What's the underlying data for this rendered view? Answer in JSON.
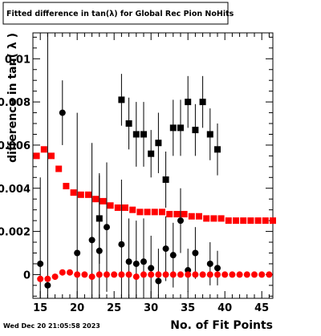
{
  "chart_data": {
    "type": "scatter",
    "title": "Fitted difference in tan(λ) for Global Rec Pion NoHits",
    "xlabel": "No. of Fit Points",
    "ylabel": "difference in tan( λ )",
    "xlim": [
      14,
      46.5
    ],
    "ylim": [
      -0.0011,
      0.0112
    ],
    "grid": false,
    "legend": "none",
    "x_ticks": [
      15,
      20,
      25,
      30,
      35,
      40,
      45
    ],
    "x_tick_labels": [
      "15",
      "20",
      "25",
      "30",
      "35",
      "40",
      "45"
    ],
    "y_ticks": [
      0,
      0.002,
      0.004,
      0.006,
      0.008,
      0.01
    ],
    "y_tick_labels": [
      "0",
      "0.002",
      "0.004",
      "0.006",
      "0.008",
      "0.01"
    ],
    "series": [
      {
        "marker": "square",
        "color": "#000000",
        "points": [
          {
            "x": 23,
            "y": 0.0026,
            "err": 0.0021
          },
          {
            "x": 26,
            "y": 0.0081,
            "err": 0.0012
          },
          {
            "x": 27,
            "y": 0.007,
            "err": 0.0012
          },
          {
            "x": 28,
            "y": 0.0065,
            "err": 0.0015
          },
          {
            "x": 29,
            "y": 0.0065,
            "err": 0.0015
          },
          {
            "x": 30,
            "y": 0.0056,
            "err": 0.0011
          },
          {
            "x": 31,
            "y": 0.0061,
            "err": 0.0014
          },
          {
            "x": 32,
            "y": 0.0044,
            "err": 0.0013
          },
          {
            "x": 33,
            "y": 0.0068,
            "err": 0.0013
          },
          {
            "x": 34,
            "y": 0.0068,
            "err": 0.0013
          },
          {
            "x": 35,
            "y": 0.008,
            "err": 0.0012
          },
          {
            "x": 36,
            "y": 0.0067,
            "err": 0.0012
          },
          {
            "x": 37,
            "y": 0.008,
            "err": 0.0012
          },
          {
            "x": 38,
            "y": 0.0065,
            "err": 0.0012
          },
          {
            "x": 39,
            "y": 0.0058,
            "err": 0.0012
          }
        ]
      },
      {
        "marker": "circle",
        "color": "#000000",
        "points": [
          {
            "x": 15,
            "y": 0.0005,
            "err": 0.004
          },
          {
            "x": 16,
            "y": -0.0005,
            "err": 0.012
          },
          {
            "x": 18,
            "y": 0.0075,
            "err": 0.0015
          },
          {
            "x": 20,
            "y": 0.001,
            "err": 0.0065
          },
          {
            "x": 22,
            "y": 0.0016,
            "err": 0.0045
          },
          {
            "x": 23,
            "y": 0.0011,
            "err": 0.0035
          },
          {
            "x": 24,
            "y": 0.0022,
            "err": 0.003
          },
          {
            "x": 26,
            "y": 0.0014,
            "err": 0.003
          },
          {
            "x": 27,
            "y": 0.0006,
            "err": 0.002
          },
          {
            "x": 28,
            "y": 0.0005,
            "err": 0.002
          },
          {
            "x": 29,
            "y": 0.0006,
            "err": 0.002
          },
          {
            "x": 30,
            "y": 0.0003,
            "err": 0.0015
          },
          {
            "x": 31,
            "y": -0.0003,
            "err": 0.0015
          },
          {
            "x": 32,
            "y": 0.0012,
            "err": 0.0015
          },
          {
            "x": 33,
            "y": 0.0009,
            "err": 0.0015
          },
          {
            "x": 34,
            "y": 0.0025,
            "err": 0.0015
          },
          {
            "x": 35,
            "y": 0.0002,
            "err": 0.001
          },
          {
            "x": 36,
            "y": 0.001,
            "err": 0.0012
          },
          {
            "x": 38,
            "y": 0.0005,
            "err": 0.001
          },
          {
            "x": 39,
            "y": 0.0003,
            "err": 0.0008
          }
        ]
      },
      {
        "marker": "square",
        "color": "#ff0000",
        "points": [
          {
            "x": 14.5,
            "y": 0.0055
          },
          {
            "x": 15.5,
            "y": 0.0058
          },
          {
            "x": 16.5,
            "y": 0.0055
          },
          {
            "x": 17.5,
            "y": 0.0049
          },
          {
            "x": 18.5,
            "y": 0.0041
          },
          {
            "x": 19.5,
            "y": 0.0038
          },
          {
            "x": 20.5,
            "y": 0.0037
          },
          {
            "x": 21.5,
            "y": 0.0037
          },
          {
            "x": 22.5,
            "y": 0.0035
          },
          {
            "x": 23.5,
            "y": 0.0034
          },
          {
            "x": 24.5,
            "y": 0.0032
          },
          {
            "x": 25.5,
            "y": 0.0031
          },
          {
            "x": 26.5,
            "y": 0.0031
          },
          {
            "x": 27.5,
            "y": 0.003
          },
          {
            "x": 28.5,
            "y": 0.0029
          },
          {
            "x": 29.5,
            "y": 0.0029
          },
          {
            "x": 30.5,
            "y": 0.0029
          },
          {
            "x": 31.5,
            "y": 0.0029
          },
          {
            "x": 32.5,
            "y": 0.0028
          },
          {
            "x": 33.5,
            "y": 0.0028
          },
          {
            "x": 34.5,
            "y": 0.0028
          },
          {
            "x": 35.5,
            "y": 0.0027
          },
          {
            "x": 36.5,
            "y": 0.0027
          },
          {
            "x": 37.5,
            "y": 0.0026
          },
          {
            "x": 38.5,
            "y": 0.0026
          },
          {
            "x": 39.5,
            "y": 0.0026
          },
          {
            "x": 40.5,
            "y": 0.0025
          },
          {
            "x": 41.5,
            "y": 0.0025
          },
          {
            "x": 42.5,
            "y": 0.0025
          },
          {
            "x": 43.5,
            "y": 0.0025
          },
          {
            "x": 44.5,
            "y": 0.0025
          },
          {
            "x": 45.5,
            "y": 0.0025
          },
          {
            "x": 46.5,
            "y": 0.0025
          }
        ]
      },
      {
        "marker": "circle",
        "color": "#ff0000",
        "points": [
          {
            "x": 15,
            "y": -0.0002
          },
          {
            "x": 16,
            "y": -0.0002
          },
          {
            "x": 17,
            "y": -0.0001
          },
          {
            "x": 18,
            "y": 0.0001
          },
          {
            "x": 19,
            "y": 0.0001
          },
          {
            "x": 20,
            "y": 0.0
          },
          {
            "x": 21,
            "y": 0.0
          },
          {
            "x": 22,
            "y": -0.0001
          },
          {
            "x": 23,
            "y": 0.0
          },
          {
            "x": 24,
            "y": 0.0
          },
          {
            "x": 25,
            "y": 0.0
          },
          {
            "x": 26,
            "y": 0.0
          },
          {
            "x": 27,
            "y": 0.0
          },
          {
            "x": 28,
            "y": -0.0001
          },
          {
            "x": 29,
            "y": 0.0
          },
          {
            "x": 30,
            "y": 0.0
          },
          {
            "x": 31,
            "y": 0.0
          },
          {
            "x": 32,
            "y": 0.0
          },
          {
            "x": 33,
            "y": 0.0
          },
          {
            "x": 34,
            "y": 0.0
          },
          {
            "x": 35,
            "y": 0.0
          },
          {
            "x": 36,
            "y": 0.0
          },
          {
            "x": 37,
            "y": 0.0
          },
          {
            "x": 38,
            "y": 0.0
          },
          {
            "x": 39,
            "y": 0.0
          },
          {
            "x": 40,
            "y": 0.0
          },
          {
            "x": 41,
            "y": 0.0
          },
          {
            "x": 42,
            "y": 0.0
          },
          {
            "x": 43,
            "y": 0.0
          },
          {
            "x": 44,
            "y": 0.0
          },
          {
            "x": 45,
            "y": 0.0
          },
          {
            "x": 46,
            "y": 0.0
          }
        ]
      }
    ]
  },
  "footer": {
    "timestamp": "Wed Dec 20 21:05:58 2023"
  }
}
